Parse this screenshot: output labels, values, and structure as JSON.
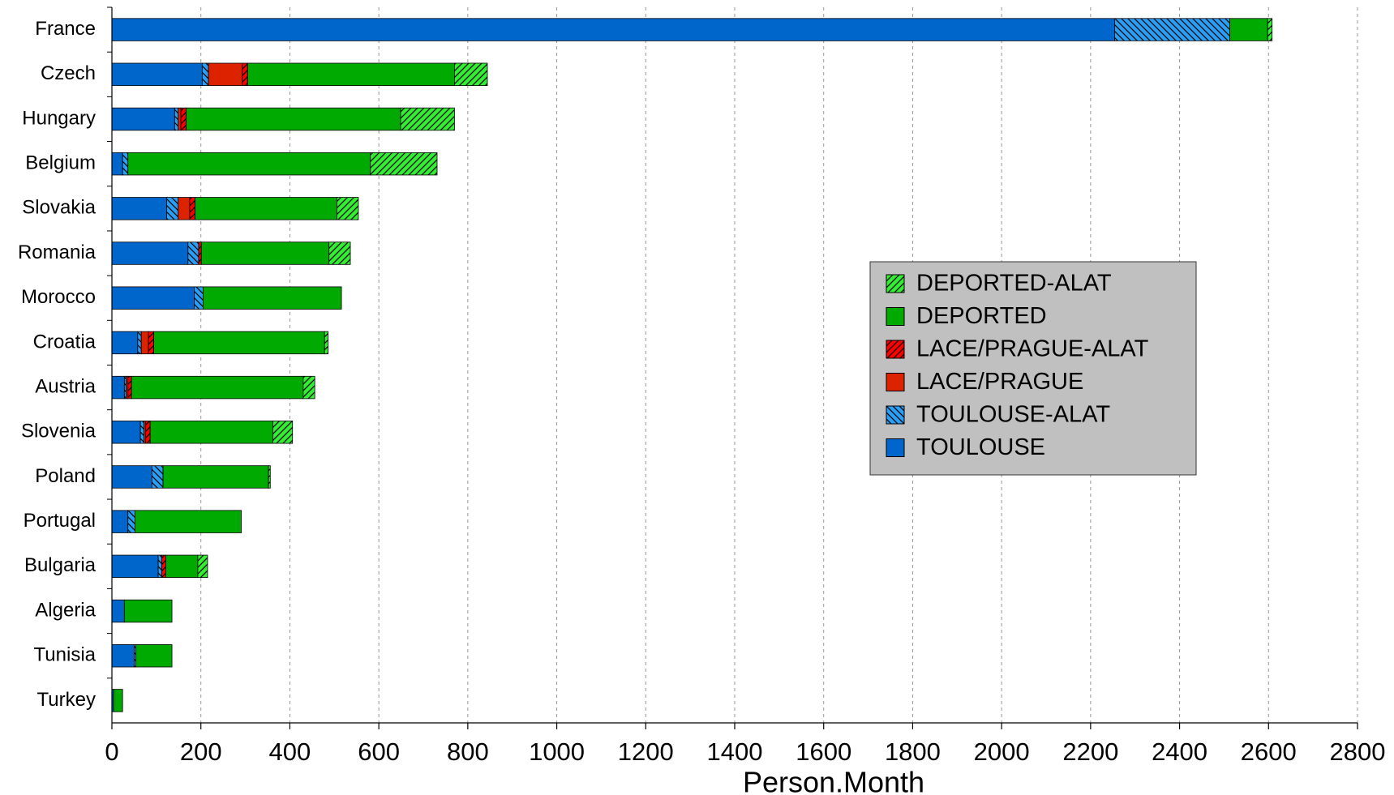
{
  "chart_data": {
    "type": "stacked-hbar",
    "x_label": "Person.Month",
    "categories": [
      "France",
      "Czech",
      "Hungary",
      "Belgium",
      "Slovakia",
      "Romania",
      "Morocco",
      "Croatia",
      "Austria",
      "Slovenia",
      "Poland",
      "Portugal",
      "Bulgaria",
      "Algeria",
      "Tunisia",
      "Turkey"
    ],
    "series": [
      {
        "name": "TOULOUSE",
        "color": "#0066cc",
        "values": [
          2254,
          203,
          141,
          24,
          123,
          171,
          185,
          58,
          28,
          64,
          90,
          36,
          104,
          28,
          50,
          4
        ]
      },
      {
        "name": "TOULOUSE-ALAT",
        "color": "#2a9df4",
        "hatch": "backward",
        "values": [
          259,
          14,
          8,
          12,
          26,
          24,
          20,
          8,
          4,
          8,
          25,
          16,
          8,
          0,
          4,
          0
        ]
      },
      {
        "name": "LACE/PRAGUE",
        "color": "#dd2200",
        "values": [
          0,
          76,
          6,
          0,
          26,
          0,
          0,
          16,
          4,
          4,
          0,
          0,
          0,
          0,
          0,
          0
        ]
      },
      {
        "name": "LACE/PRAGUE-ALAT",
        "color": "#ff0000",
        "hatch": "forward",
        "values": [
          0,
          12,
          12,
          0,
          12,
          6,
          0,
          12,
          8,
          10,
          0,
          0,
          9,
          0,
          0,
          0
        ]
      },
      {
        "name": "DEPORTED",
        "color": "#00aa00",
        "values": [
          85,
          465,
          482,
          545,
          319,
          287,
          311,
          384,
          386,
          276,
          237,
          239,
          72,
          107,
          81,
          20
        ]
      },
      {
        "name": "DEPORTED-ALAT",
        "color": "#33ee33",
        "hatch": "forward",
        "values": [
          10,
          74,
          121,
          150,
          48,
          48,
          0,
          8,
          26,
          44,
          4,
          0,
          22,
          0,
          0,
          0
        ]
      }
    ],
    "xlim": [
      0,
      2800
    ],
    "xticks": [
      0,
      200,
      400,
      600,
      800,
      1000,
      1200,
      1400,
      1600,
      1800,
      2000,
      2200,
      2400,
      2600,
      2800
    ],
    "grid": true,
    "legend": "right"
  }
}
